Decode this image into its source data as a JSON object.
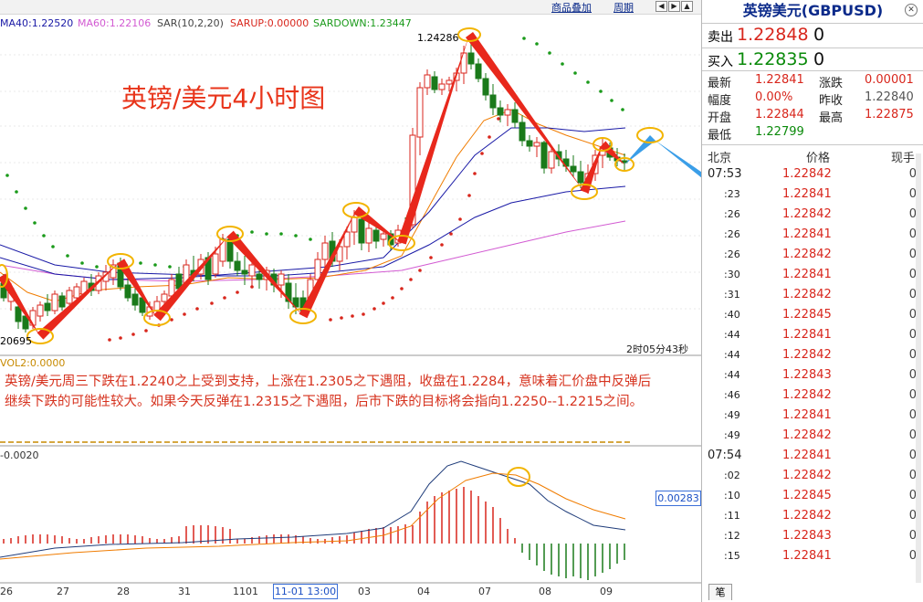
{
  "menu": {
    "overlay_label": "商品叠加",
    "period_label": "周期"
  },
  "nav_buttons": [
    "◀",
    "▶",
    "▲",
    "▼"
  ],
  "indicators": [
    {
      "text": "MA40:1.22520",
      "color": "#1a1aa6"
    },
    {
      "text": "MA60:1.22106",
      "color": "#d25ad2"
    },
    {
      "text": "SAR(10,2,20)",
      "color": "#444444"
    },
    {
      "text": "SARUP:0.00000",
      "color": "#d8261c"
    },
    {
      "text": "SARDOWN:1.23447",
      "color": "#1a9a1a"
    }
  ],
  "chart_title": "英镑/美元4小时图",
  "high_label": "1.24286",
  "low_label": "20695",
  "timer": "2时05分43秒",
  "commentary": "英镑/美元周三下跌在1.2240之上受到支持，上涨在1.2305之下遇阻，收盘在1.2284，意味着汇价盘中反弹后继续下跌的可能性较大。如果今天反弹在1.2315之下遇阻，后市下跌的目标将会指向1.2250--1.2215之间。",
  "vol_label": "VOL2:0.0000",
  "macd_label": "-0.0020",
  "macd_value": "0.00283",
  "x_ticks": [
    {
      "text": "26",
      "x": 0
    },
    {
      "text": "27",
      "x": 62
    },
    {
      "text": "28",
      "x": 128
    },
    {
      "text": "31",
      "x": 195
    },
    {
      "text": "1101",
      "x": 255
    },
    {
      "text": "03",
      "x": 392
    },
    {
      "text": "04",
      "x": 457
    },
    {
      "text": "07",
      "x": 524
    },
    {
      "text": "08",
      "x": 590
    },
    {
      "text": "09",
      "x": 657
    }
  ],
  "x_selected": "11-01 13:00",
  "panel": {
    "title": "英镑美元(GBPUSD)",
    "sell_label": "卖出",
    "sell_price": "1.22848",
    "sell_vol": "0",
    "buy_label": "买入",
    "buy_price": "1.22835",
    "buy_vol": "0",
    "stats": [
      {
        "label": "最新",
        "value": "1.22841",
        "label2": "涨跌",
        "value2": "0.00001",
        "c1": "red",
        "c2": "red"
      },
      {
        "label": "幅度",
        "value": "0.00%",
        "label2": "昨收",
        "value2": "1.22840",
        "c1": "red",
        "c2": "gray"
      },
      {
        "label": "开盘",
        "value": "1.22844",
        "label2": "最高",
        "value2": "1.22875",
        "c1": "red",
        "c2": "red"
      },
      {
        "label": "最低",
        "value": "1.22799",
        "label2": "",
        "value2": "",
        "c1": "green",
        "c2": ""
      }
    ],
    "table_headers": {
      "place": "北京",
      "price": "价格",
      "volume": "现手"
    },
    "ticks": [
      {
        "t": "07:53",
        "p": "1.22842",
        "v": "0",
        "hour": true
      },
      {
        "t": ":23",
        "p": "1.22841",
        "v": "0"
      },
      {
        "t": ":26",
        "p": "1.22842",
        "v": "0"
      },
      {
        "t": ":26",
        "p": "1.22841",
        "v": "0"
      },
      {
        "t": ":26",
        "p": "1.22842",
        "v": "0"
      },
      {
        "t": ":30",
        "p": "1.22841",
        "v": "0"
      },
      {
        "t": ":31",
        "p": "1.22842",
        "v": "0"
      },
      {
        "t": ":40",
        "p": "1.22845",
        "v": "0"
      },
      {
        "t": ":44",
        "p": "1.22841",
        "v": "0"
      },
      {
        "t": ":44",
        "p": "1.22842",
        "v": "0"
      },
      {
        "t": ":44",
        "p": "1.22843",
        "v": "0"
      },
      {
        "t": ":46",
        "p": "1.22842",
        "v": "0"
      },
      {
        "t": ":49",
        "p": "1.22841",
        "v": "0"
      },
      {
        "t": ":49",
        "p": "1.22842",
        "v": "0"
      },
      {
        "t": "07:54",
        "p": "1.22841",
        "v": "0",
        "hour": true
      },
      {
        "t": ":02",
        "p": "1.22842",
        "v": "0"
      },
      {
        "t": ":10",
        "p": "1.22845",
        "v": "0"
      },
      {
        "t": ":11",
        "p": "1.22842",
        "v": "0"
      },
      {
        "t": ":12",
        "p": "1.22843",
        "v": "0"
      },
      {
        "t": ":15",
        "p": "1.22841",
        "v": "0"
      }
    ],
    "bottom_tab": "笔"
  },
  "colors": {
    "up": "#d8261c",
    "down": "#1a7a1a",
    "arrow": "#e8281c",
    "circle": "#f2b400",
    "ma_blue": "#1a1aa6",
    "ma_orange": "#f07c00",
    "ma_purple": "#d25ad2",
    "sar_red": "#d8261c",
    "sar_green": "#1a9a1a"
  }
}
